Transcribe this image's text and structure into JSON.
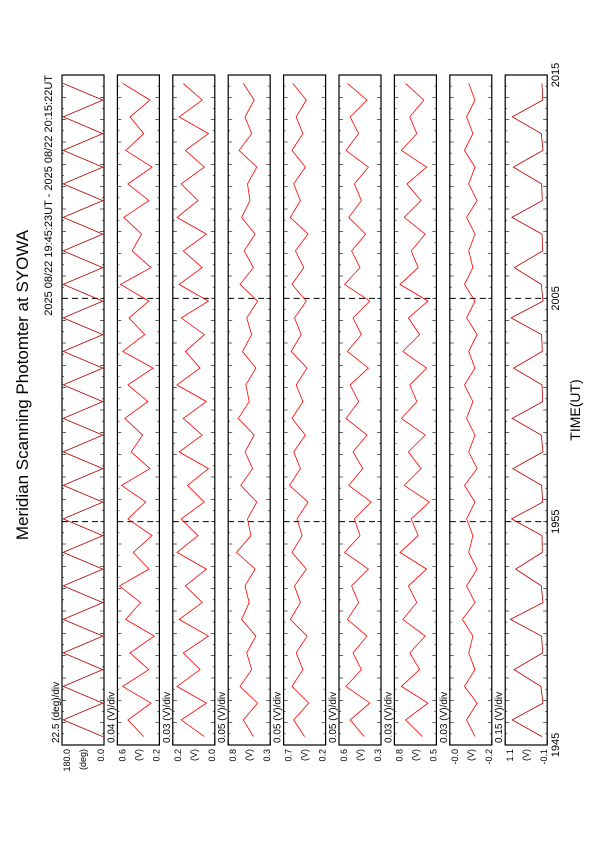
{
  "header": {
    "title": "Meridian Scanning Photomter at SYOWA",
    "subtitle": "2025 08/22 19:45:23UT - 2025 08/22 20:15:22UT"
  },
  "x_axis": {
    "label": "TIME(UT)",
    "xlim": [
      0,
      30
    ],
    "xticks": [
      {
        "value": 0,
        "label": "1945"
      },
      {
        "value": 10,
        "label": "1955"
      },
      {
        "value": 20,
        "label": "2005"
      },
      {
        "value": 30,
        "label": "2015"
      }
    ]
  },
  "chart_data": [
    {
      "type": "line",
      "scale_label": "22.5 (deg)/div",
      "unit": "(deg)",
      "color": "#b00000",
      "ylim": [
        0,
        180
      ],
      "yticks": [
        {
          "value": 180,
          "label": "180.0"
        },
        {
          "value": 0,
          "label": "0.0"
        }
      ],
      "values": [
        5,
        175,
        5,
        175,
        5,
        175,
        5,
        175,
        5,
        175,
        5,
        175,
        5,
        175,
        5,
        175,
        5,
        175,
        5,
        175,
        5,
        175,
        5,
        175,
        5,
        175,
        5,
        175,
        5,
        175,
        5,
        175,
        5,
        175,
        5,
        175,
        5,
        175,
        5,
        175
      ]
    },
    {
      "type": "line",
      "scale_label": "0.04 (V)/div",
      "unit": "(V)",
      "color": "#ff0000",
      "ylim": [
        0.2,
        0.6
      ],
      "yticks": [
        0.6,
        0.2
      ],
      "values": [
        0.35,
        0.5,
        0.28,
        0.55,
        0.3,
        0.48,
        0.25,
        0.52,
        0.38,
        0.58,
        0.3,
        0.45,
        0.27,
        0.5,
        0.33,
        0.56,
        0.29,
        0.47,
        0.36,
        0.53,
        0.31,
        0.5,
        0.26,
        0.55,
        0.34,
        0.49,
        0.3,
        0.57,
        0.28,
        0.46,
        0.37,
        0.54,
        0.3,
        0.5,
        0.27,
        0.52,
        0.35,
        0.48,
        0.29,
        0.55
      ]
    },
    {
      "type": "line",
      "scale_label": "0.03 (V)/div",
      "unit": "(V)",
      "color": "#ff0000",
      "ylim": [
        0,
        0.2
      ],
      "yticks": [
        0.2,
        {
          "value": 0,
          "label": "0.0"
        }
      ],
      "values": [
        0.05,
        0.16,
        0.04,
        0.18,
        0.07,
        0.15,
        0.03,
        0.17,
        0.06,
        0.14,
        0.04,
        0.18,
        0.08,
        0.16,
        0.05,
        0.13,
        0.03,
        0.17,
        0.06,
        0.15,
        0.04,
        0.18,
        0.07,
        0.14,
        0.05,
        0.16,
        0.03,
        0.17,
        0.06,
        0.15,
        0.04,
        0.18,
        0.08,
        0.16,
        0.05,
        0.14,
        0.03,
        0.17,
        0.06,
        0.15
      ]
    },
    {
      "type": "line",
      "scale_label": "0.05 (V)/div",
      "unit": "(V)",
      "color": "#ff0000",
      "ylim": [
        0.3,
        0.8
      ],
      "yticks": [
        0.8,
        0.3
      ],
      "values": [
        0.5,
        0.62,
        0.45,
        0.66,
        0.52,
        0.58,
        0.47,
        0.64,
        0.55,
        0.6,
        0.48,
        0.7,
        0.53,
        0.57,
        0.46,
        0.65,
        0.51,
        0.6,
        0.49,
        0.68,
        0.55,
        0.59,
        0.47,
        0.63,
        0.52,
        0.58,
        0.45,
        0.66,
        0.5,
        0.61,
        0.48,
        0.64,
        0.54,
        0.57,
        0.46,
        0.67,
        0.52,
        0.6,
        0.49,
        0.62
      ]
    },
    {
      "type": "line",
      "scale_label": "0.05 (V)/div",
      "unit": "(V)",
      "color": "#ff0000",
      "ylim": [
        0.2,
        0.7
      ],
      "yticks": [
        0.7,
        0.2
      ],
      "values": [
        0.45,
        0.58,
        0.4,
        0.6,
        0.47,
        0.55,
        0.42,
        0.62,
        0.5,
        0.57,
        0.43,
        0.6,
        0.48,
        0.54,
        0.41,
        0.63,
        0.5,
        0.58,
        0.44,
        0.6,
        0.47,
        0.55,
        0.42,
        0.61,
        0.49,
        0.57,
        0.43,
        0.6,
        0.46,
        0.56,
        0.41,
        0.62,
        0.5,
        0.58,
        0.44,
        0.6,
        0.47,
        0.55,
        0.43,
        0.59
      ]
    },
    {
      "type": "line",
      "scale_label": "0.05 (V)/div",
      "unit": "(V)",
      "color": "#ff0000",
      "ylim": [
        0.3,
        0.6
      ],
      "yticks": [
        0.6,
        0.3
      ],
      "values": [
        0.42,
        0.52,
        0.38,
        0.55,
        0.44,
        0.5,
        0.4,
        0.54,
        0.46,
        0.51,
        0.39,
        0.56,
        0.45,
        0.49,
        0.37,
        0.53,
        0.43,
        0.5,
        0.4,
        0.55,
        0.46,
        0.52,
        0.39,
        0.54,
        0.44,
        0.5,
        0.38,
        0.56,
        0.45,
        0.51,
        0.41,
        0.53,
        0.44,
        0.49,
        0.39,
        0.55,
        0.46,
        0.52,
        0.4,
        0.54
      ]
    },
    {
      "type": "line",
      "scale_label": "0.03 (V)/div",
      "unit": "(V)",
      "color": "#ff0000",
      "ylim": [
        0.5,
        0.8
      ],
      "yticks": [
        0.8,
        0.5
      ],
      "values": [
        0.6,
        0.72,
        0.56,
        0.75,
        0.62,
        0.69,
        0.58,
        0.74,
        0.64,
        0.7,
        0.57,
        0.76,
        0.63,
        0.68,
        0.55,
        0.73,
        0.61,
        0.7,
        0.58,
        0.75,
        0.64,
        0.69,
        0.57,
        0.74,
        0.62,
        0.7,
        0.56,
        0.76,
        0.63,
        0.68,
        0.58,
        0.73,
        0.61,
        0.71,
        0.57,
        0.75,
        0.64,
        0.69,
        0.59,
        0.72
      ]
    },
    {
      "type": "line",
      "scale_label": "0.03 (V)/div",
      "unit": "(V)",
      "color": "#ff0000",
      "ylim": [
        -0.2,
        0
      ],
      "yticks": [
        {
          "value": 0,
          "label": "-0.0"
        },
        -0.2
      ],
      "values": [
        -0.12,
        -0.08,
        -0.13,
        -0.07,
        -0.12,
        -0.09,
        -0.11,
        -0.06,
        -0.12,
        -0.08,
        -0.13,
        -0.09,
        -0.11,
        -0.08,
        -0.12,
        -0.07,
        -0.13,
        -0.09,
        -0.12,
        -0.08,
        -0.11,
        -0.07,
        -0.12,
        -0.09,
        -0.13,
        -0.08,
        -0.12,
        -0.07,
        -0.11,
        -0.09,
        -0.12,
        -0.08,
        -0.13,
        -0.09,
        -0.12,
        -0.07,
        -0.11,
        -0.08,
        -0.12,
        -0.09
      ]
    },
    {
      "type": "line",
      "scale_label": "0.15 (V)/div",
      "unit": "(V)",
      "color": "#c00000",
      "ylim": [
        -0.1,
        1.1
      ],
      "yticks": [
        1.1,
        -0.1
      ],
      "values": [
        0.05,
        0.9,
        0.02,
        0.08,
        0.85,
        0.03,
        0.06,
        0.95,
        0.02,
        0.07,
        0.8,
        0.04,
        0.05,
        0.92,
        0.03,
        0.06,
        0.88,
        0.02,
        0.07,
        0.9,
        0.03,
        0.05,
        0.86,
        0.04,
        0.06,
        0.93,
        0.02,
        0.07,
        0.84,
        0.03,
        0.05,
        0.91,
        0.04,
        0.06,
        0.87,
        0.02,
        0.07,
        0.9,
        0.03,
        0.05
      ]
    }
  ]
}
